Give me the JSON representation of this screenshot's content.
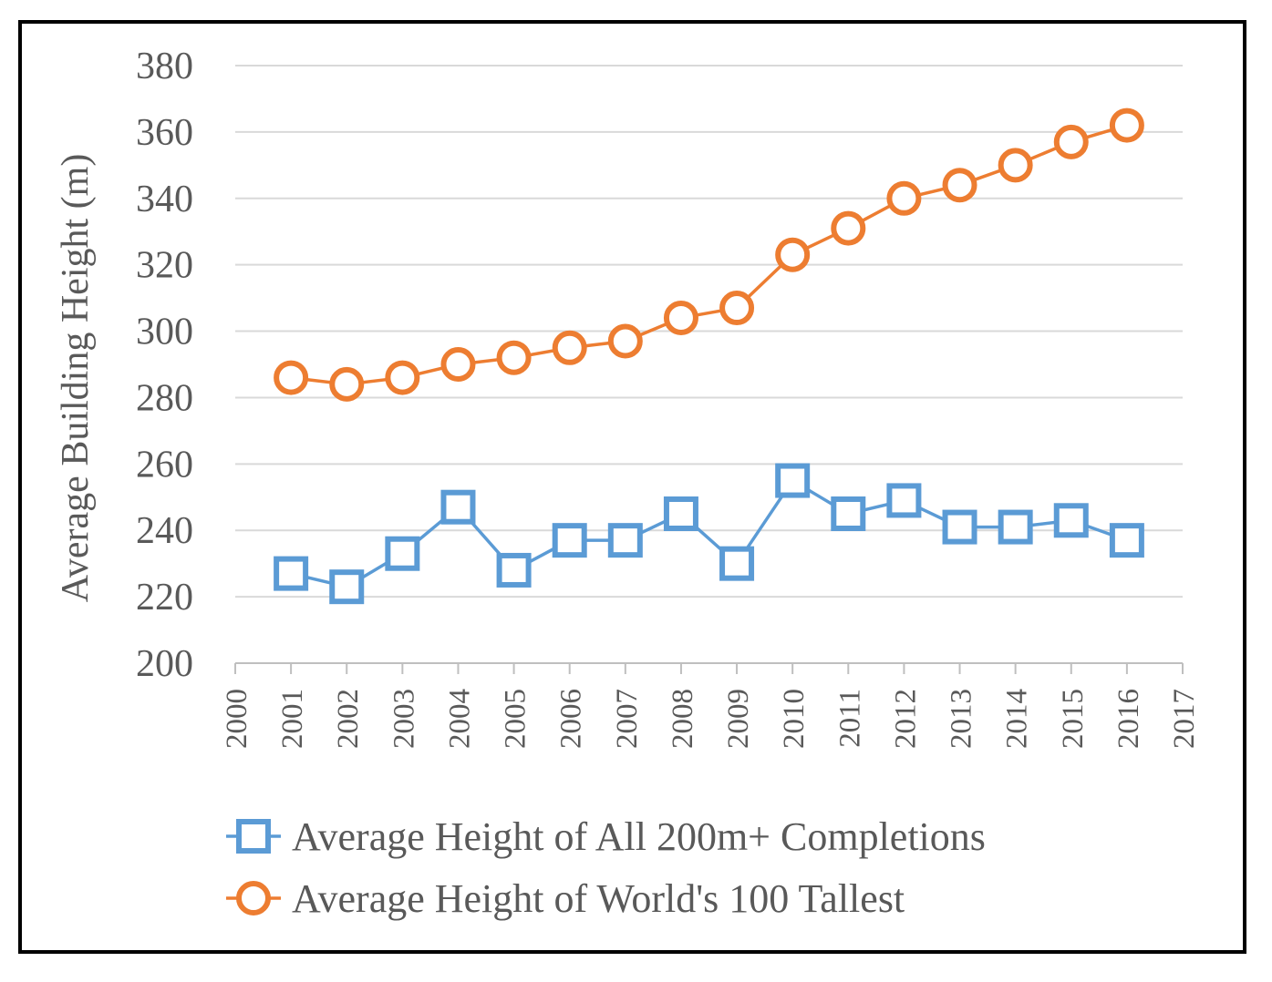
{
  "chart_data": {
    "type": "line",
    "title": "",
    "xlabel": "",
    "ylabel": "Average Building Height (m)",
    "x_ticks": [
      2000,
      2001,
      2002,
      2003,
      2004,
      2005,
      2006,
      2007,
      2008,
      2009,
      2010,
      2011,
      2012,
      2013,
      2014,
      2015,
      2016,
      2017
    ],
    "xlim": [
      2000,
      2017
    ],
    "ylim": [
      200,
      380
    ],
    "y_ticks": [
      200,
      220,
      240,
      260,
      280,
      300,
      320,
      340,
      360,
      380
    ],
    "grid": true,
    "legend_position": "bottom",
    "series": [
      {
        "name": "Average Height of All 200m+ Completions",
        "color": "#5b9bd5",
        "marker": "square",
        "x": [
          2001,
          2002,
          2003,
          2004,
          2005,
          2006,
          2007,
          2008,
          2009,
          2010,
          2011,
          2012,
          2013,
          2014,
          2015,
          2016
        ],
        "values": [
          227,
          223,
          233,
          247,
          228,
          237,
          237,
          245,
          230,
          255,
          245,
          249,
          241,
          241,
          243,
          237
        ]
      },
      {
        "name": "Average Height of World's 100 Tallest",
        "color": "#ed7d31",
        "marker": "circle",
        "x": [
          2001,
          2002,
          2003,
          2004,
          2005,
          2006,
          2007,
          2008,
          2009,
          2010,
          2011,
          2012,
          2013,
          2014,
          2015,
          2016
        ],
        "values": [
          286,
          284,
          286,
          290,
          292,
          295,
          297,
          304,
          307,
          323,
          331,
          340,
          344,
          350,
          357,
          362
        ]
      }
    ]
  }
}
